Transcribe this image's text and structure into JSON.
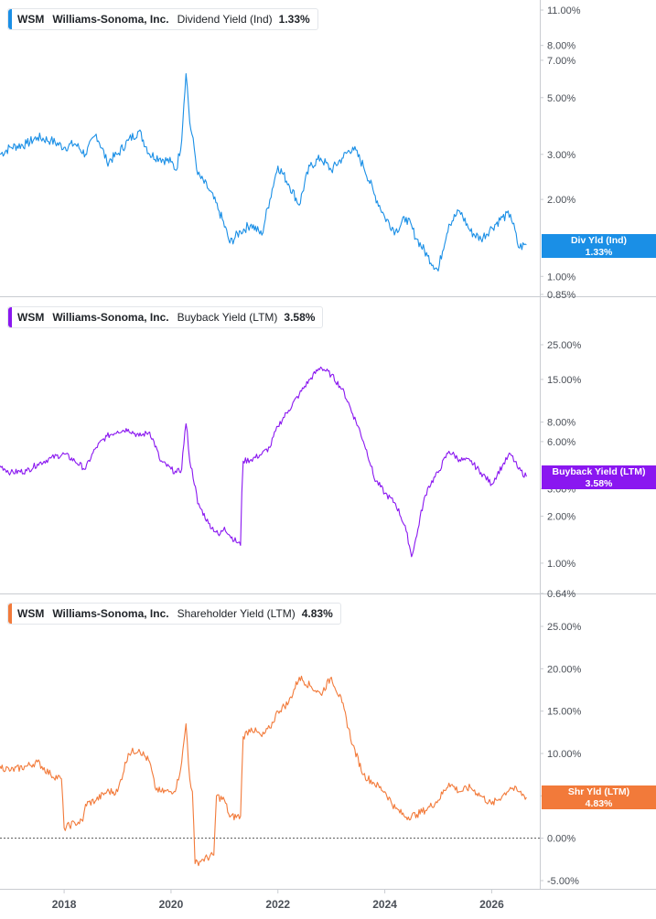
{
  "chart_data": [
    {
      "type": "line",
      "ticker": "WSM",
      "company": "Williams-Sonoma, Inc.",
      "metric": "Dividend Yield (Ind)",
      "current_value": "1.33%",
      "badge_label": "Div Yld (Ind)",
      "color": "#1a8fe6",
      "scale": "log",
      "ylim": [
        0.85,
        12.0
      ],
      "y_ticks": [
        {
          "label": "11.00%",
          "value": 11
        },
        {
          "label": "8.00%",
          "value": 8
        },
        {
          "label": "7.00%",
          "value": 7
        },
        {
          "label": "5.00%",
          "value": 5
        },
        {
          "label": "3.00%",
          "value": 3
        },
        {
          "label": "2.00%",
          "value": 2
        },
        {
          "label": "1.00%",
          "value": 1
        },
        {
          "label": "0.85%",
          "value": 0.85
        }
      ],
      "series": [
        {
          "x": [
            2016.8,
            2017.0,
            2017.3,
            2017.5,
            2017.75,
            2018.0,
            2018.2,
            2018.4,
            2018.6,
            2018.8,
            2019.0,
            2019.2,
            2019.4,
            2019.6,
            2019.8,
            2020.0,
            2020.1,
            2020.2,
            2020.28,
            2020.35,
            2020.5,
            2020.7,
            2020.9,
            2021.1,
            2021.3,
            2021.5,
            2021.7,
            2021.85,
            2022.0,
            2022.2,
            2022.4,
            2022.6,
            2022.8,
            2023.0,
            2023.2,
            2023.4,
            2023.6,
            2023.8,
            2024.0,
            2024.2,
            2024.4,
            2024.6,
            2024.8,
            2025.0,
            2025.2,
            2025.4,
            2025.6,
            2025.8,
            2026.0,
            2026.2,
            2026.35,
            2026.5,
            2026.65
          ],
          "y": [
            3.0,
            3.2,
            3.3,
            3.5,
            3.4,
            3.2,
            3.3,
            3.0,
            3.6,
            2.8,
            3.0,
            3.4,
            3.7,
            3.0,
            2.9,
            2.8,
            2.6,
            3.4,
            6.2,
            4.0,
            2.5,
            2.2,
            1.8,
            1.35,
            1.5,
            1.6,
            1.45,
            2.0,
            2.7,
            2.3,
            1.9,
            2.7,
            2.9,
            2.6,
            2.9,
            3.2,
            2.7,
            2.1,
            1.7,
            1.5,
            1.7,
            1.4,
            1.2,
            1.05,
            1.6,
            1.8,
            1.5,
            1.4,
            1.55,
            1.7,
            1.75,
            1.3,
            1.33
          ]
        }
      ]
    },
    {
      "type": "line",
      "ticker": "WSM",
      "company": "Williams-Sonoma, Inc.",
      "metric": "Buyback Yield (LTM)",
      "current_value": "3.58%",
      "badge_label": "Buyback Yield (LTM)",
      "color": "#8a17f0",
      "scale": "log",
      "ylim": [
        0.64,
        35.0
      ],
      "y_ticks": [
        {
          "label": "25.00%",
          "value": 25
        },
        {
          "label": "15.00%",
          "value": 15
        },
        {
          "label": "8.00%",
          "value": 8
        },
        {
          "label": "6.00%",
          "value": 6
        },
        {
          "label": "3.00%",
          "value": 3
        },
        {
          "label": "2.00%",
          "value": 2
        },
        {
          "label": "1.00%",
          "value": 1
        },
        {
          "label": "0.64%",
          "value": 0.64
        }
      ],
      "series": [
        {
          "x": [
            2016.8,
            2017.0,
            2017.3,
            2017.5,
            2017.75,
            2018.0,
            2018.2,
            2018.4,
            2018.6,
            2018.8,
            2019.0,
            2019.2,
            2019.4,
            2019.6,
            2019.8,
            2020.0,
            2020.1,
            2020.2,
            2020.28,
            2020.35,
            2020.5,
            2020.7,
            2020.9,
            2021.0,
            2021.1,
            2021.3,
            2021.35,
            2021.5,
            2021.7,
            2021.85,
            2022.0,
            2022.2,
            2022.4,
            2022.6,
            2022.8,
            2023.0,
            2023.2,
            2023.4,
            2023.6,
            2023.8,
            2024.0,
            2024.2,
            2024.4,
            2024.5,
            2024.6,
            2024.8,
            2025.0,
            2025.2,
            2025.4,
            2025.6,
            2025.8,
            2026.0,
            2026.2,
            2026.35,
            2026.5,
            2026.65
          ],
          "y": [
            4.2,
            3.8,
            3.9,
            4.3,
            4.7,
            5.0,
            4.5,
            4.0,
            5.5,
            6.5,
            7.0,
            7.2,
            6.5,
            6.9,
            4.5,
            4.0,
            3.8,
            4.0,
            7.8,
            4.5,
            2.4,
            1.8,
            1.5,
            1.7,
            1.5,
            1.3,
            4.5,
            4.6,
            5.0,
            5.5,
            7.5,
            9.5,
            12.0,
            15.0,
            18.0,
            16.0,
            13.0,
            9.0,
            6.0,
            3.5,
            2.8,
            2.4,
            1.6,
            1.1,
            1.5,
            3.0,
            3.8,
            5.2,
            4.6,
            4.5,
            3.8,
            3.2,
            4.2,
            5.0,
            4.0,
            3.58
          ]
        }
      ]
    },
    {
      "type": "line",
      "ticker": "WSM",
      "company": "Williams-Sonoma, Inc.",
      "metric": "Shareholder Yield (LTM)",
      "current_value": "4.83%",
      "badge_label": "Shr Yld (LTM)",
      "color": "#f27a3a",
      "scale": "linear",
      "ylim": [
        -6.0,
        27.0
      ],
      "zero_line": true,
      "y_ticks": [
        {
          "label": "25.00%",
          "value": 25
        },
        {
          "label": "20.00%",
          "value": 20
        },
        {
          "label": "15.00%",
          "value": 15
        },
        {
          "label": "10.00%",
          "value": 10
        },
        {
          "label": "5.00%",
          "value": 5
        },
        {
          "label": "0.00%",
          "value": 0
        },
        {
          "label": "-5.00%",
          "value": -5
        }
      ],
      "series": [
        {
          "x": [
            2016.8,
            2017.0,
            2017.3,
            2017.5,
            2017.75,
            2017.95,
            2018.0,
            2018.2,
            2018.35,
            2018.4,
            2018.6,
            2018.8,
            2019.0,
            2019.2,
            2019.4,
            2019.6,
            2019.7,
            2019.8,
            2020.0,
            2020.1,
            2020.2,
            2020.28,
            2020.35,
            2020.4,
            2020.45,
            2020.6,
            2020.8,
            2020.85,
            2021.0,
            2021.1,
            2021.3,
            2021.35,
            2021.5,
            2021.7,
            2021.85,
            2022.0,
            2022.2,
            2022.4,
            2022.6,
            2022.8,
            2023.0,
            2023.2,
            2023.4,
            2023.6,
            2023.8,
            2024.0,
            2024.2,
            2024.4,
            2024.6,
            2024.8,
            2025.0,
            2025.2,
            2025.4,
            2025.6,
            2025.8,
            2026.0,
            2026.2,
            2026.35,
            2026.5,
            2026.65
          ],
          "y": [
            8.5,
            8.0,
            8.5,
            9.0,
            7.5,
            7.0,
            1.2,
            1.8,
            2.0,
            4.0,
            4.5,
            5.5,
            5.5,
            10.0,
            10.5,
            9.0,
            6.0,
            5.5,
            5.5,
            6.0,
            9.0,
            13.5,
            7.0,
            5.5,
            -3.0,
            -2.5,
            -2.0,
            5.0,
            4.5,
            2.5,
            2.6,
            12.0,
            13.0,
            12.0,
            13.0,
            15.0,
            16.0,
            19.0,
            18.0,
            17.0,
            19.0,
            16.0,
            11.0,
            7.5,
            6.5,
            5.5,
            3.5,
            2.5,
            2.8,
            3.5,
            4.5,
            6.5,
            5.5,
            6.0,
            5.0,
            4.0,
            5.0,
            6.0,
            5.5,
            4.83
          ]
        }
      ]
    }
  ],
  "x_axis": {
    "ticks": [
      {
        "label": "2018",
        "value": 2018
      },
      {
        "label": "2020",
        "value": 2020
      },
      {
        "label": "2022",
        "value": 2022
      },
      {
        "label": "2024",
        "value": 2024
      },
      {
        "label": "2026",
        "value": 2026
      }
    ],
    "range": [
      2016.8,
      2026.9
    ]
  }
}
